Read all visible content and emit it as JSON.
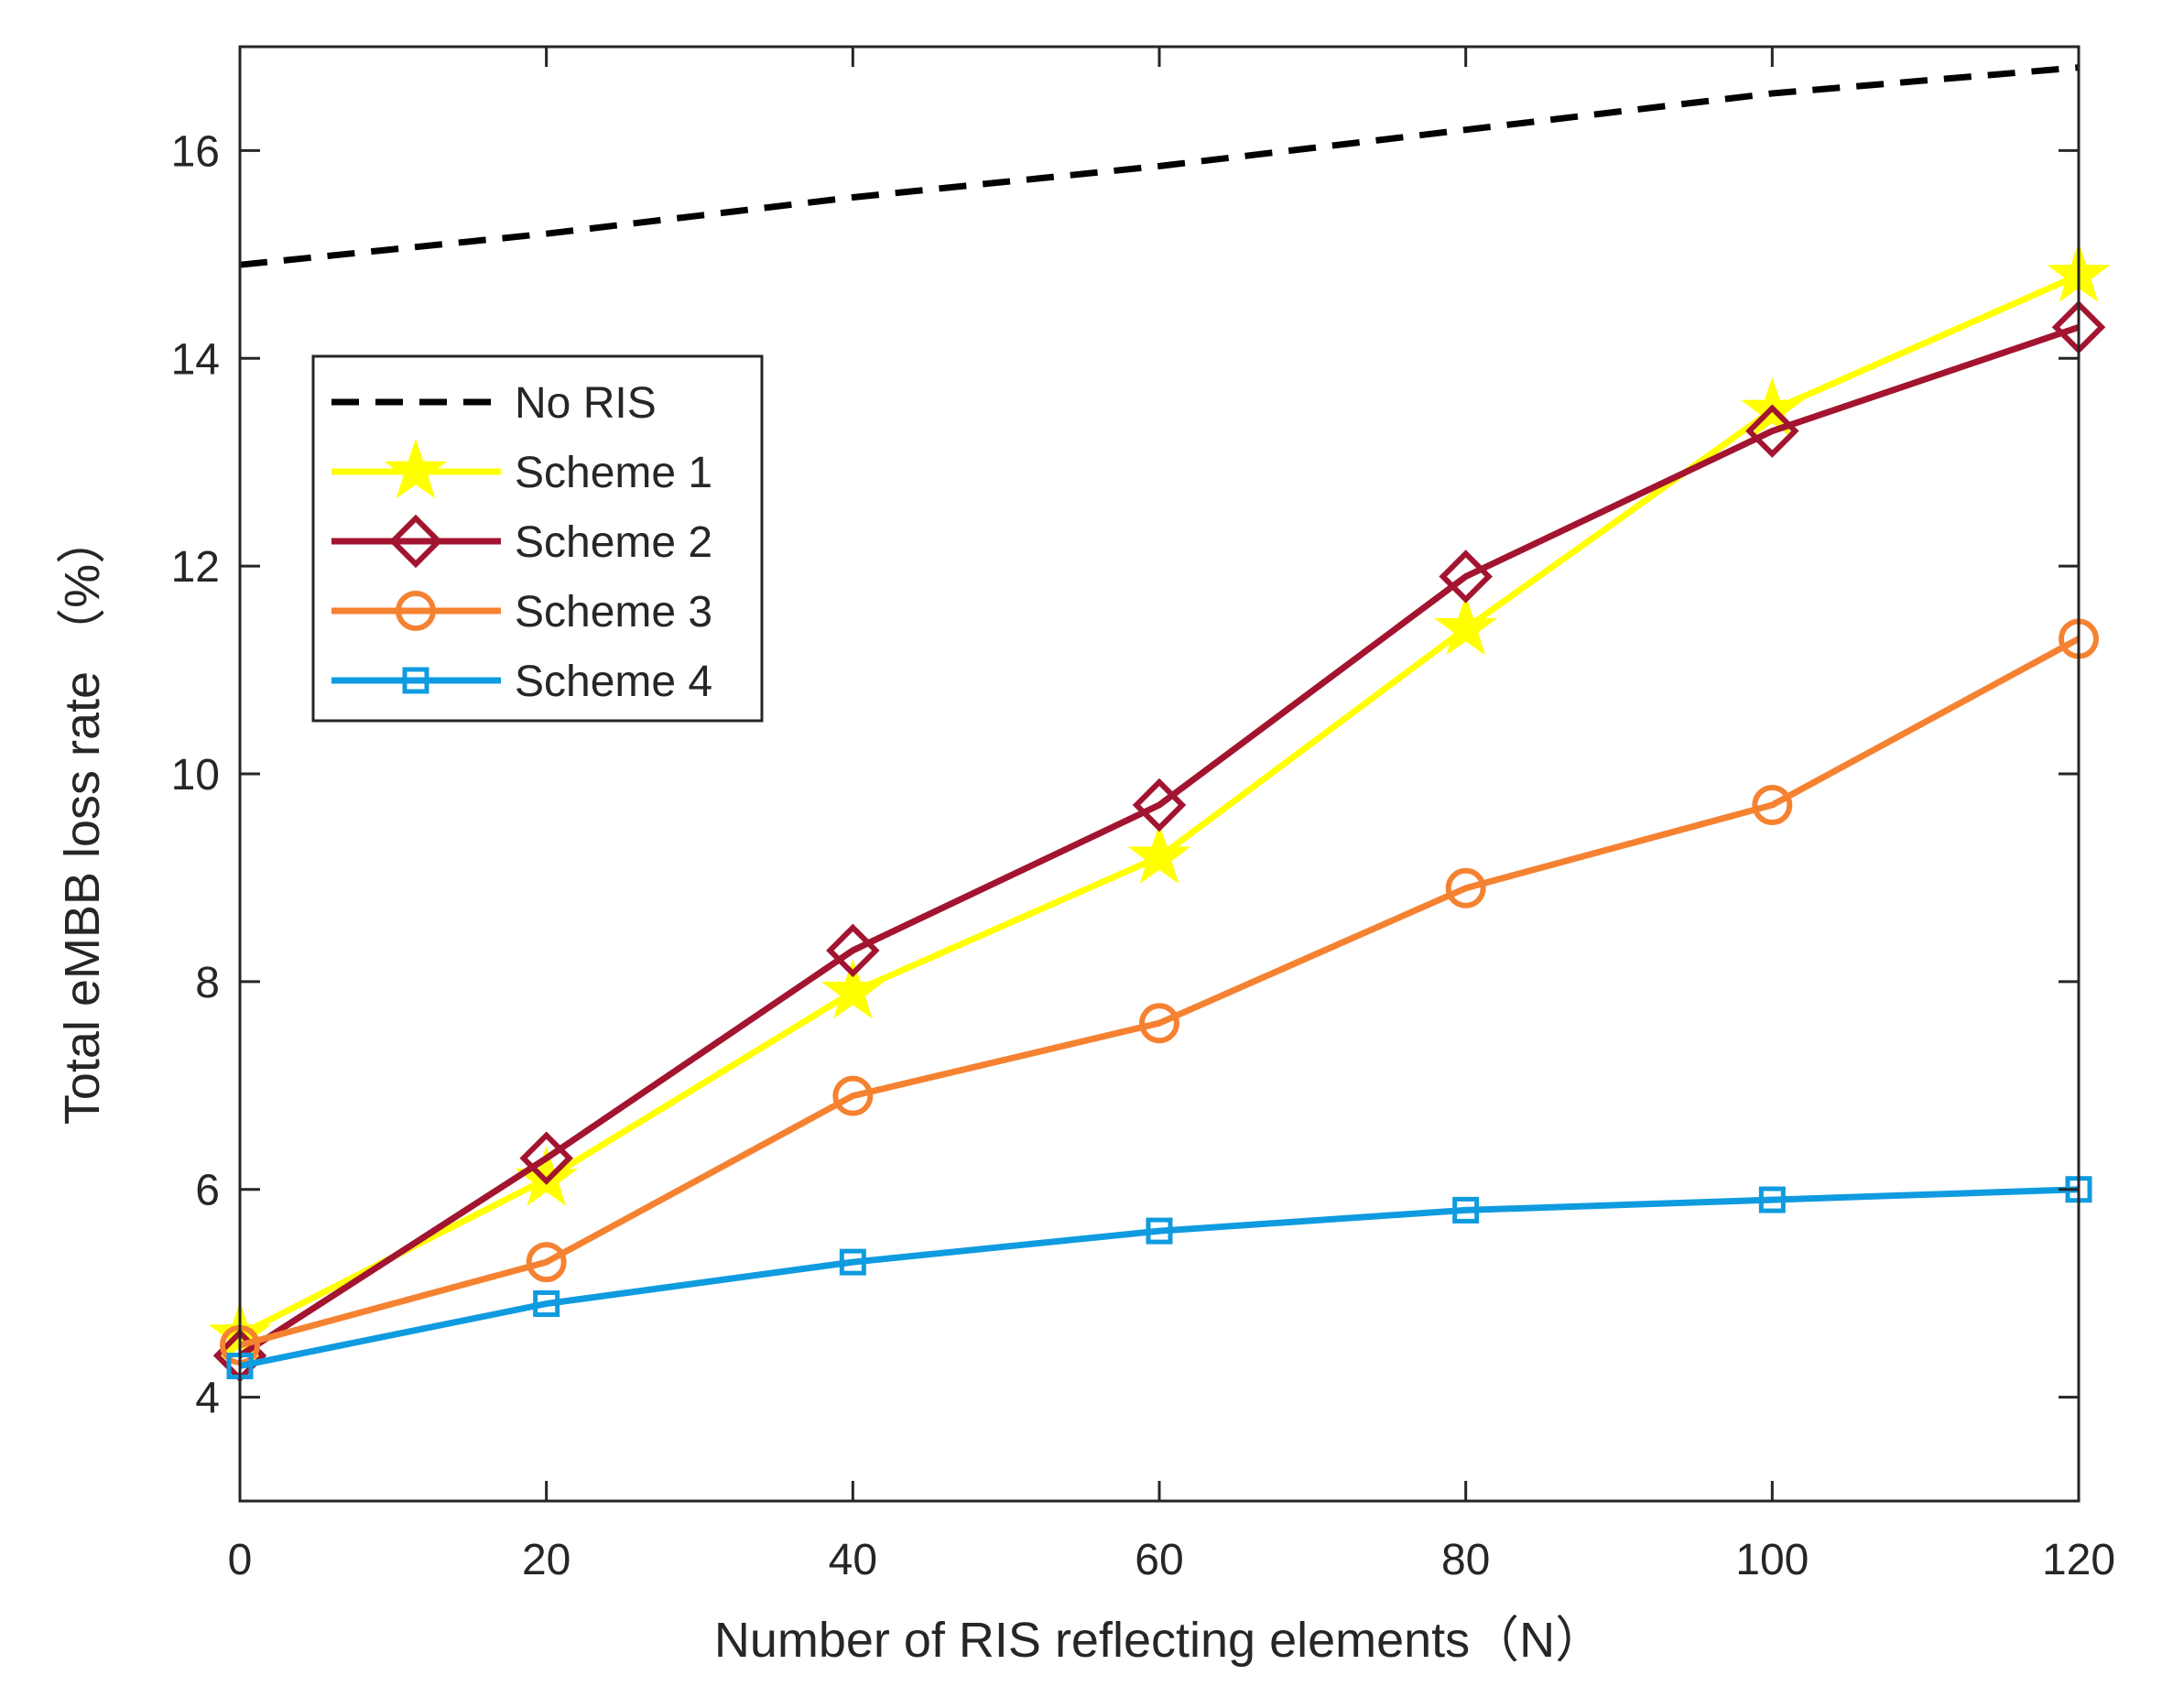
{
  "chart_data": {
    "type": "line",
    "title": "",
    "xlabel": "Number of RIS reflecting elements（N）",
    "ylabel": "Total eMBB loss rate  （%）",
    "xlim": [
      0,
      120
    ],
    "ylim": [
      3,
      17
    ],
    "xticks": [
      0,
      20,
      40,
      60,
      80,
      100,
      120
    ],
    "xtick_labels": [
      "0",
      "20",
      "40",
      "60",
      "80",
      "100",
      "120"
    ],
    "yticks": [
      4,
      6,
      8,
      10,
      12,
      14,
      16
    ],
    "ytick_labels": [
      "4",
      "6",
      "8",
      "10",
      "12",
      "14",
      "16"
    ],
    "grid": false,
    "legend_position": "upper-left",
    "x": [
      0,
      20,
      40,
      60,
      80,
      100,
      120
    ],
    "series": [
      {
        "name": "No RIS",
        "values": [
          14.9,
          15.2,
          15.55,
          15.85,
          16.2,
          16.55,
          16.8
        ],
        "color": "#000000",
        "line_style": "dashed",
        "marker": "none"
      },
      {
        "name": "Scheme 1",
        "values": [
          4.6,
          6.1,
          7.9,
          9.2,
          11.4,
          13.5,
          14.8
        ],
        "color": "#FFFF00",
        "line_style": "solid",
        "marker": "star"
      },
      {
        "name": "Scheme 2",
        "values": [
          4.4,
          6.3,
          8.3,
          9.7,
          11.9,
          13.3,
          14.3
        ],
        "color": "#A2142F",
        "line_style": "solid",
        "marker": "diamond"
      },
      {
        "name": "Scheme 3",
        "values": [
          4.5,
          5.3,
          6.9,
          7.6,
          8.9,
          9.7,
          11.3
        ],
        "color": "#F58231",
        "line_style": "solid",
        "marker": "circle"
      },
      {
        "name": "Scheme 4",
        "values": [
          4.3,
          4.9,
          5.3,
          5.6,
          5.8,
          5.9,
          6.0
        ],
        "color": "#0F9BDF",
        "line_style": "solid",
        "marker": "square"
      }
    ]
  }
}
